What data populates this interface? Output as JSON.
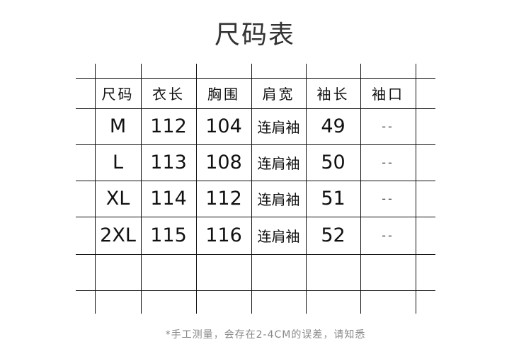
{
  "title": "尺码表",
  "table": {
    "headers": [
      "尺码",
      "衣长",
      "胸围",
      "肩宽",
      "袖长",
      "袖口"
    ],
    "rows": [
      [
        "M",
        "112",
        "104",
        "连肩袖",
        "49",
        "--"
      ],
      [
        "L",
        "113",
        "108",
        "连肩袖",
        "50",
        "--"
      ],
      [
        "XL",
        "114",
        "112",
        "连肩袖",
        "51",
        "--"
      ],
      [
        "2XL",
        "115",
        "116",
        "连肩袖",
        "52",
        "--"
      ]
    ]
  },
  "note": "*手工测量，会存在2-4CM的误差，请知悉"
}
